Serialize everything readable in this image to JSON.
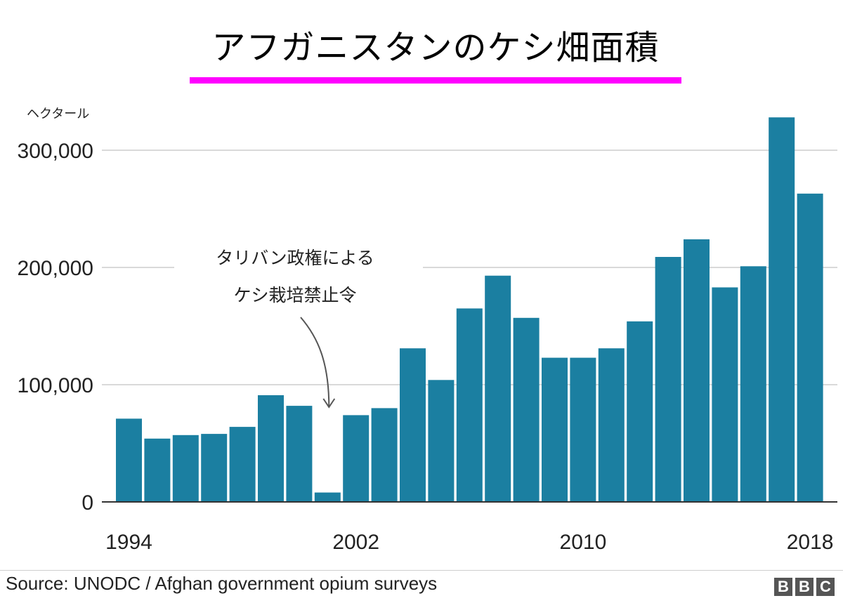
{
  "header": {
    "title": "アフガニスタンのケシ畑面積"
  },
  "chart_data": {
    "type": "bar",
    "title": "アフガニスタンのケシ畑面積",
    "ylabel": "ヘクタール",
    "xlabel": "",
    "ylim": [
      0,
      330000
    ],
    "grid": true,
    "categories": [
      "1994",
      "1995",
      "1996",
      "1997",
      "1998",
      "1999",
      "2000",
      "2001",
      "2002",
      "2003",
      "2004",
      "2005",
      "2006",
      "2007",
      "2008",
      "2009",
      "2010",
      "2011",
      "2012",
      "2013",
      "2014",
      "2015",
      "2016",
      "2017",
      "2018"
    ],
    "values": [
      71000,
      54000,
      57000,
      58000,
      64000,
      91000,
      82000,
      8000,
      74000,
      80000,
      131000,
      104000,
      165000,
      193000,
      157000,
      123000,
      123000,
      131000,
      154000,
      209000,
      224000,
      183000,
      201000,
      328000,
      263000
    ],
    "x_tick_labels": [
      "1994",
      "2002",
      "2010",
      "2018"
    ],
    "y_ticks": [
      0,
      100000,
      200000,
      300000
    ],
    "y_tick_labels": [
      "0",
      "100,000",
      "200,000",
      "300,000"
    ],
    "bar_color": "#1b7fa1",
    "annotation": {
      "line1": "タリバン政権による",
      "line2": "ケシ栽培禁止令",
      "year": "2001"
    }
  },
  "footer": {
    "source": "Source: UNODC / Afghan government opium surveys",
    "logo_letters": [
      "B",
      "B",
      "C"
    ]
  },
  "colors": {
    "accent": "#ff00ff",
    "bar": "#1b7fa1",
    "grid": "#d9d9d9",
    "axis": "#333333"
  }
}
